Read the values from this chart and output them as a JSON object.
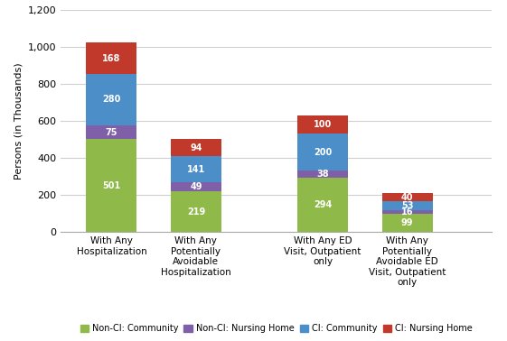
{
  "categories": [
    "With Any\nHospitalization",
    "With Any\nPotentially\nAvoidable\nHospitalization",
    "With Any ED\nVisit, Outpatient\nonly",
    "With Any\nPotentially\nAvoidable ED\nVisit, Outpatient\nonly"
  ],
  "series": {
    "Non-CI: Community": [
      501,
      219,
      294,
      99
    ],
    "Non-CI: Nursing Home": [
      75,
      49,
      38,
      16
    ],
    "CI: Community": [
      280,
      141,
      200,
      53
    ],
    "CI: Nursing Home": [
      168,
      94,
      100,
      40
    ]
  },
  "colors": {
    "Non-CI: Community": "#8fba4a",
    "Non-CI: Nursing Home": "#7f5fa8",
    "CI: Community": "#4b8ec8",
    "CI: Nursing Home": "#c0392b"
  },
  "series_order": [
    "Non-CI: Community",
    "Non-CI: Nursing Home",
    "CI: Community",
    "CI: Nursing Home"
  ],
  "ylabel": "Persons (in Thousands)",
  "ylim": [
    0,
    1200
  ],
  "yticks": [
    0,
    200,
    400,
    600,
    800,
    1000,
    1200
  ],
  "bar_width": 0.6,
  "positions": [
    0.5,
    1.5,
    3.0,
    4.0
  ],
  "xlim": [
    -0.1,
    5.0
  ],
  "background_color": "#ffffff",
  "grid_color": "#d0d0d0",
  "label_color": "#ffffff",
  "label_fontsize": 7.0
}
